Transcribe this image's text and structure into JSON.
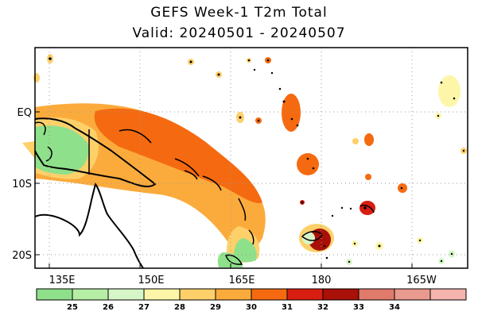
{
  "title": "GEFS Week-1 T2m Total",
  "subtitle": "Valid: 20240501 - 20240507",
  "map": {
    "lat_labels": [
      "EQ",
      "10S",
      "20S"
    ],
    "lon_labels": [
      "135E",
      "150E",
      "165E",
      "180",
      "165W"
    ],
    "grid": "dotted"
  },
  "colorbar": {
    "colors": [
      "#8fe08a",
      "#b5eea4",
      "#d6f6c8",
      "#fdf6a8",
      "#fdd06a",
      "#fbab3c",
      "#f56a10",
      "#d81e10",
      "#a81008",
      "#e07a6a",
      "#e89a8e",
      "#f5b4ae"
    ],
    "labels": [
      "25",
      "26",
      "27",
      "28",
      "29",
      "30",
      "31",
      "32",
      "33",
      "34"
    ]
  }
}
